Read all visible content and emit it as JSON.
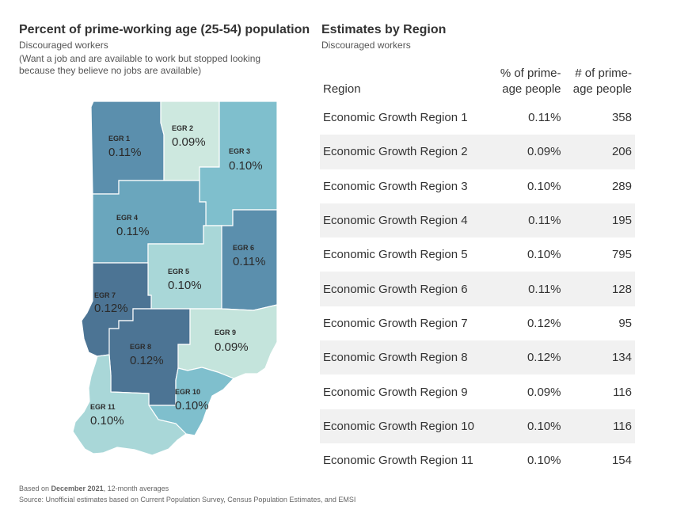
{
  "map": {
    "title": "Percent of prime-working age (25-54) population",
    "subtitle": "Discouraged workers",
    "note": "(Want a job and are available to work but stopped looking because they believe no jobs are available)",
    "regions": [
      {
        "code": "EGR 1",
        "value": "0.11%",
        "color": "#5b8fad"
      },
      {
        "code": "EGR 2",
        "value": "0.09%",
        "color": "#cde8df"
      },
      {
        "code": "EGR 3",
        "value": "0.10%",
        "color": "#7fbfcd"
      },
      {
        "code": "EGR 4",
        "value": "0.11%",
        "color": "#6aa6bd"
      },
      {
        "code": "EGR 5",
        "value": "0.10%",
        "color": "#a9d7d8"
      },
      {
        "code": "EGR 6",
        "value": "0.11%",
        "color": "#5b8fad"
      },
      {
        "code": "EGR 7",
        "value": "0.12%",
        "color": "#4c7494"
      },
      {
        "code": "EGR 8",
        "value": "0.12%",
        "color": "#4c7494"
      },
      {
        "code": "EGR 9",
        "value": "0.09%",
        "color": "#c4e4dc"
      },
      {
        "code": "EGR 10",
        "value": "0.10%",
        "color": "#7fbfcd"
      },
      {
        "code": "EGR 11",
        "value": "0.10%",
        "color": "#a9d7d8"
      }
    ]
  },
  "table": {
    "title": "Estimates by Region",
    "subtitle": "Discouraged workers",
    "headers": {
      "region": "Region",
      "pct_line1": "% of prime-",
      "pct_line2": "age people",
      "num_line1": "# of prime-",
      "num_line2": "age people"
    },
    "rows": [
      {
        "region": "Economic Growth Region 1",
        "pct": "0.11%",
        "count": "358"
      },
      {
        "region": "Economic Growth Region 2",
        "pct": "0.09%",
        "count": "206"
      },
      {
        "region": "Economic Growth Region 3",
        "pct": "0.10%",
        "count": "289"
      },
      {
        "region": "Economic Growth Region 4",
        "pct": "0.11%",
        "count": "195"
      },
      {
        "region": "Economic Growth Region 5",
        "pct": "0.10%",
        "count": "795"
      },
      {
        "region": "Economic Growth Region 6",
        "pct": "0.11%",
        "count": "128"
      },
      {
        "region": "Economic Growth Region 7",
        "pct": "0.12%",
        "count": "95"
      },
      {
        "region": "Economic Growth Region 8",
        "pct": "0.12%",
        "count": "134"
      },
      {
        "region": "Economic Growth Region 9",
        "pct": "0.09%",
        "count": "116"
      },
      {
        "region": "Economic Growth Region 10",
        "pct": "0.10%",
        "count": "116"
      },
      {
        "region": "Economic Growth Region 11",
        "pct": "0.10%",
        "count": "154"
      }
    ]
  },
  "footer": {
    "based_prefix": "Based on ",
    "based_bold": "December 2021",
    "based_suffix": ", 12-month averages",
    "source": "Source: Unofficial estimates based on Current Population Survey, Census Population Estimates, and EMSI"
  }
}
